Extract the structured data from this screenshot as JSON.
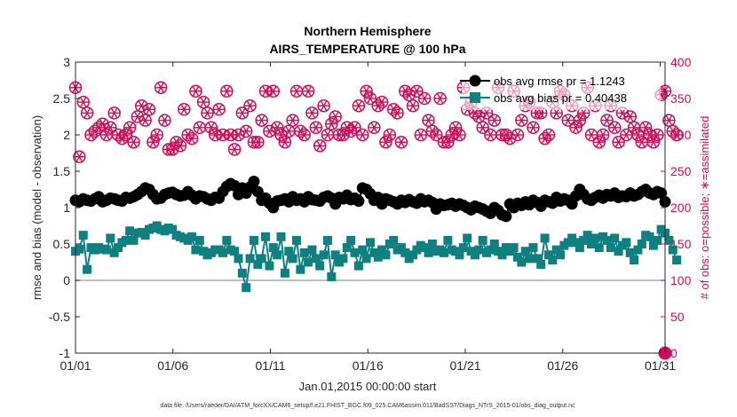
{
  "chart_data": {
    "type": "line",
    "title": "Northern Hemisphere",
    "subtitle": "AIRS_TEMPERATURE @ 100 hPa",
    "xlabel": "Jan.01,2015 00:00:00 start",
    "ylabel": "rmse and bias (model - observation)",
    "ylabel_right": "# of obs: o=possible; ∗=assimilated",
    "footer": "data file: /Users/raeder/DAI/ATM_forcXX/CAM6_setup/f.e21.FHIST_BGC.f09_025.CAM6assim.011/BadSST/Diags_NTrS_2015-01/obs_diag_output.nc",
    "x_ticks": [
      "01/01",
      "01/06",
      "01/11",
      "01/16",
      "01/21",
      "01/26",
      "01/31"
    ],
    "x_tick_days": [
      1,
      6,
      11,
      16,
      21,
      26,
      31
    ],
    "xlim_days": [
      1,
      31.25
    ],
    "ylim": [
      -1,
      3
    ],
    "y_ticks": [
      "-1",
      "-0.5",
      "0",
      "0.5",
      "1",
      "1.5",
      "2",
      "2.5",
      "3"
    ],
    "ylim_right": [
      0,
      400
    ],
    "y_ticks_right": [
      "0",
      "50",
      "100",
      "150",
      "200",
      "250",
      "300",
      "350",
      "400"
    ],
    "legend": {
      "placement": "top-right",
      "entries": [
        "obs avg rmse pr = 1.1243",
        "obs avg bias pr = 0.40438"
      ]
    },
    "colors": {
      "rmse": "#000000",
      "bias": "#0f8080",
      "obs": "#cc0e5b",
      "zero_line": "#aaaaaa"
    },
    "series": [
      {
        "key": "rmse",
        "values": [
          1.1,
          1.08,
          1.12,
          1.1,
          1.09,
          1.12,
          1.15,
          1.08,
          1.1,
          1.13,
          1.12,
          1.1,
          1.09,
          1.14,
          1.13,
          1.15,
          1.18,
          1.22,
          1.27,
          1.25,
          1.18,
          1.12,
          1.13,
          1.18,
          1.2,
          1.21,
          1.18,
          1.16,
          1.17,
          1.22,
          1.17,
          1.12,
          1.16,
          1.15,
          1.12,
          1.1,
          1.14,
          1.13,
          1.22,
          1.29,
          1.33,
          1.3,
          1.18,
          1.27,
          1.2,
          1.28,
          1.36,
          1.22,
          1.1,
          1.13,
          1.06,
          1.0,
          1.09,
          1.1,
          1.12,
          1.08,
          1.15,
          1.1,
          1.12,
          1.08,
          1.15,
          1.11,
          1.1,
          1.09,
          1.14,
          1.16,
          1.13,
          1.05,
          1.14,
          1.12,
          1.17,
          1.11,
          1.13,
          1.09,
          1.27,
          1.25,
          1.19,
          1.1,
          1.14,
          1.05,
          1.12,
          1.1,
          1.08,
          1.05,
          1.1,
          1.07,
          1.11,
          1.08,
          1.06,
          1.12,
          1.08,
          1.1,
          1.07,
          0.98,
          1.05,
          1.03,
          1.04,
          1.06,
          1.02,
          1.05,
          1.03,
          1.0,
          0.97,
          1.02,
          1.0,
          0.98,
          0.95,
          0.92,
          1.0,
          0.96,
          0.9,
          0.88,
          1.05,
          1.0,
          1.06,
          1.03,
          1.08,
          1.04,
          1.1,
          1.07,
          1.02,
          1.1,
          1.08,
          1.06,
          1.14,
          1.09,
          1.12,
          1.1,
          1.05,
          1.16,
          1.25,
          1.18,
          1.12,
          1.1,
          1.14,
          1.17,
          1.13,
          1.18,
          1.16,
          1.2,
          1.14,
          1.16,
          1.15,
          1.2,
          1.16,
          1.18,
          1.22,
          1.25,
          1.2,
          1.18,
          1.22,
          1.2,
          1.08
        ],
        "obs_possible": [
          365,
          270,
          345,
          330,
          300,
          305,
          310,
          315,
          300,
          310,
          330,
          300,
          295,
          300,
          310,
          290,
          325,
          340,
          320,
          335,
          290,
          300,
          365,
          320,
          280,
          280,
          290,
          285,
          335,
          300,
          295,
          360,
          310,
          345,
          330,
          310,
          300,
          335,
          300,
          360,
          300,
          280,
          300,
          330,
          305,
          340,
          290,
          290,
          320,
          360,
          305,
          360,
          310,
          300,
          290,
          305,
          320,
          360,
          305,
          300,
          360,
          330,
          310,
          285,
          340,
          300,
          315,
          325,
          300,
          300,
          310,
          305,
          310,
          340,
          300,
          360,
          350,
          310,
          340,
          345,
          290,
          300,
          335,
          330,
          290,
          360,
          355,
          340,
          360,
          300,
          350,
          320,
          305,
          300,
          350,
          290,
          290,
          300,
          310,
          300,
          365,
          335,
          345,
          330,
          325,
          310,
          330,
          300,
          320,
          365,
          300,
          300,
          295,
          360,
          300,
          320,
          340,
          345,
          310,
          330,
          330,
          295,
          300,
          345,
          330,
          360,
          355,
          320,
          340,
          310,
          320,
          330,
          365,
          300,
          340,
          290,
          300,
          320,
          340,
          310,
          290,
          330,
          300,
          325,
          310,
          300,
          290,
          310,
          300,
          290,
          300,
          355,
          360,
          320,
          305,
          300
        ],
        "obs_assimilated": [
          365,
          270,
          345,
          330,
          300,
          305,
          310,
          315,
          300,
          310,
          330,
          300,
          295,
          300,
          310,
          290,
          325,
          340,
          320,
          335,
          290,
          300,
          365,
          320,
          280,
          280,
          290,
          285,
          335,
          300,
          295,
          360,
          310,
          345,
          330,
          310,
          300,
          335,
          300,
          360,
          300,
          280,
          300,
          330,
          305,
          340,
          290,
          290,
          320,
          360,
          305,
          360,
          310,
          300,
          290,
          305,
          320,
          360,
          305,
          300,
          360,
          330,
          310,
          285,
          340,
          300,
          315,
          325,
          300,
          300,
          310,
          305,
          310,
          340,
          300,
          360,
          350,
          310,
          340,
          345,
          290,
          300,
          335,
          330,
          290,
          360,
          355,
          340,
          360,
          300,
          350,
          320,
          305,
          300,
          350,
          290,
          290,
          300,
          310,
          300,
          365,
          335,
          345,
          330,
          325,
          310,
          330,
          300,
          320,
          365,
          300,
          300,
          295,
          360,
          300,
          320,
          340,
          345,
          310,
          330,
          330,
          295,
          300,
          345,
          330,
          360,
          355,
          320,
          340,
          310,
          320,
          330,
          365,
          300,
          340,
          290,
          300,
          320,
          340,
          310,
          290,
          330,
          300,
          325,
          310,
          300,
          290,
          310,
          300,
          290,
          300,
          355,
          360,
          320,
          305,
          300
        ]
      },
      {
        "key": "bias",
        "values": [
          0.4,
          0.43,
          0.62,
          0.15,
          0.45,
          0.42,
          0.45,
          0.43,
          0.42,
          0.58,
          0.38,
          0.45,
          0.52,
          0.55,
          0.68,
          0.55,
          0.65,
          0.66,
          0.62,
          0.7,
          0.72,
          0.75,
          0.7,
          0.68,
          0.72,
          0.7,
          0.62,
          0.6,
          0.58,
          0.55,
          0.6,
          0.42,
          0.55,
          0.4,
          0.35,
          0.38,
          0.42,
          0.42,
          0.38,
          0.55,
          0.42,
          0.4,
          0.3,
          0.1,
          -0.1,
          0.3,
          0.55,
          0.22,
          0.3,
          0.6,
          0.2,
          0.45,
          0.35,
          0.6,
          0.1,
          0.4,
          0.3,
          0.55,
          0.15,
          0.38,
          0.25,
          0.42,
          0.3,
          0.2,
          0.35,
          0.55,
          0.05,
          0.35,
          0.25,
          0.3,
          0.45,
          0.55,
          0.38,
          0.2,
          0.42,
          0.3,
          0.52,
          0.38,
          0.32,
          0.42,
          0.35,
          0.5,
          0.55,
          0.42,
          0.45,
          0.38,
          0.3,
          0.35,
          0.42,
          0.48,
          0.45,
          0.38,
          0.5,
          0.4,
          0.42,
          0.38,
          0.55,
          0.42,
          0.4,
          0.35,
          0.45,
          0.58,
          0.4,
          0.35,
          0.42,
          0.55,
          0.38,
          0.42,
          0.5,
          0.4,
          0.35,
          0.45,
          0.4,
          0.45,
          0.32,
          0.25,
          0.4,
          0.3,
          0.45,
          0.3,
          0.22,
          0.58,
          0.35,
          0.28,
          0.42,
          0.35,
          0.48,
          0.52,
          0.58,
          0.52,
          0.45,
          0.55,
          0.62,
          0.5,
          0.58,
          0.45,
          0.6,
          0.55,
          0.45,
          0.58,
          0.4,
          0.48,
          0.52,
          0.38,
          0.28,
          0.42,
          0.5,
          0.62,
          0.6,
          0.48,
          0.55,
          0.7,
          0.65,
          0.55,
          0.42,
          0.28
        ]
      }
    ]
  }
}
